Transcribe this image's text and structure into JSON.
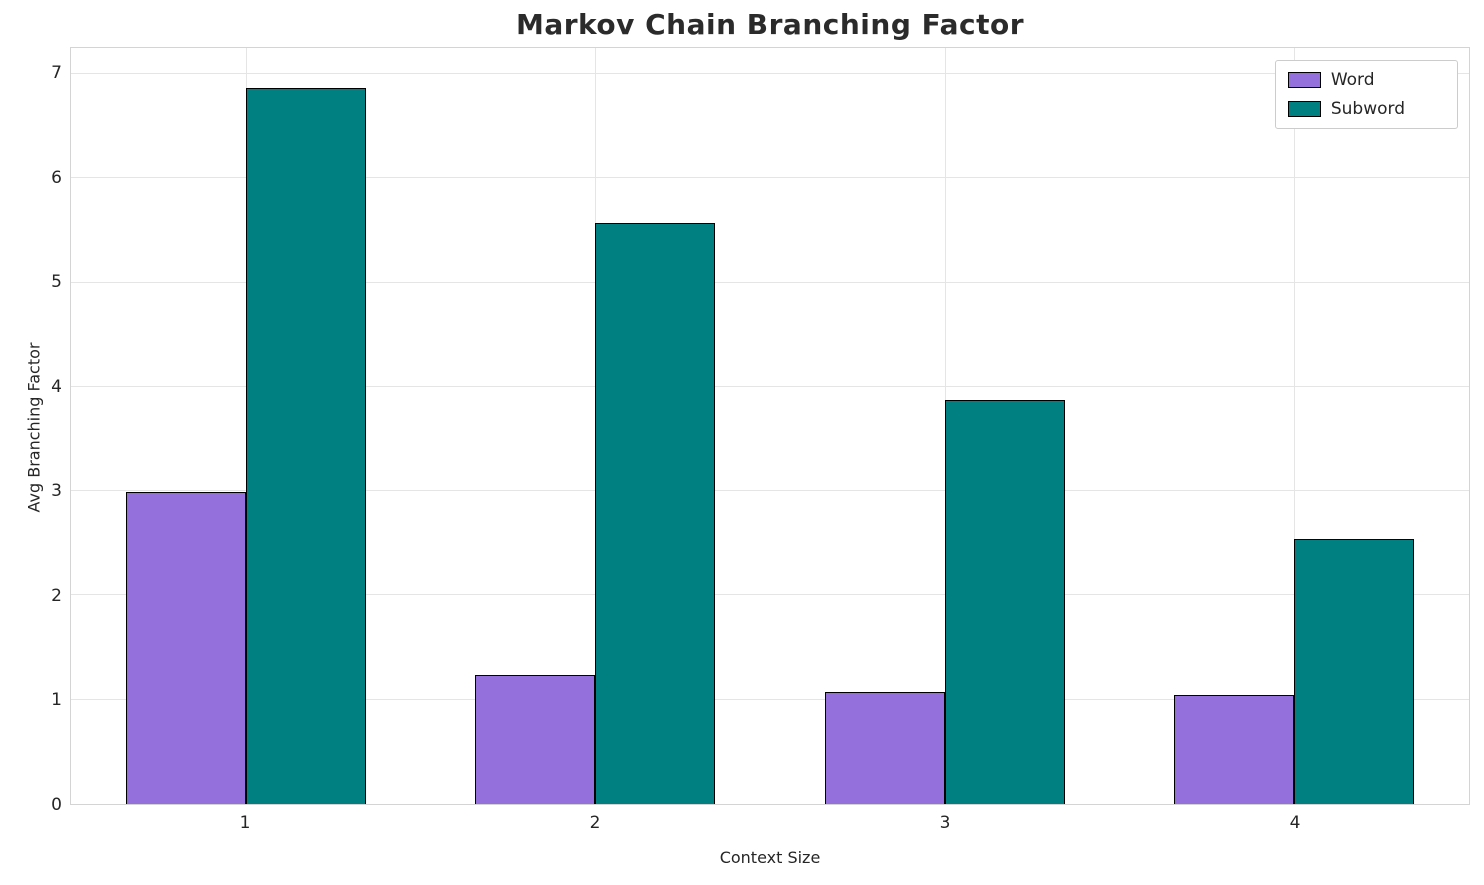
{
  "title": "Markov Chain Branching Factor",
  "chart_data": {
    "type": "bar",
    "title": "Markov Chain Branching Factor",
    "xlabel": "Context Size",
    "ylabel": "Avg Branching Factor",
    "categories": [
      "1",
      "2",
      "3",
      "4"
    ],
    "series": [
      {
        "name": "Word",
        "color": "#9370DB",
        "values": [
          2.99,
          1.24,
          1.07,
          1.05
        ]
      },
      {
        "name": "Subword",
        "color": "#008080",
        "values": [
          6.87,
          5.57,
          3.87,
          2.54
        ]
      }
    ],
    "ylim": [
      0,
      7.25
    ],
    "yticks": [
      0,
      1,
      2,
      3,
      4,
      5,
      6,
      7
    ],
    "grid": true,
    "legend_position": "upper right",
    "bar_edge_color": "#000000",
    "grid_color": "#e5e5e5",
    "background": "#ffffff"
  }
}
